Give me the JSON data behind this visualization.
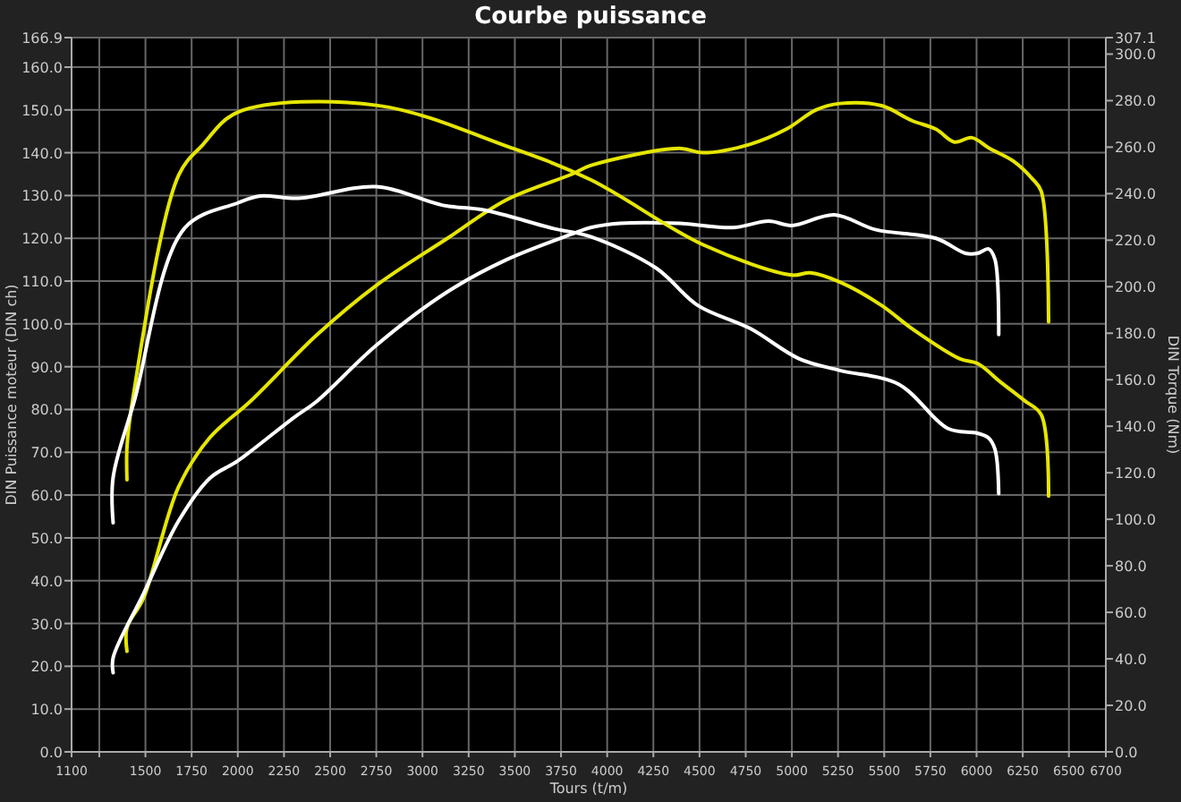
{
  "chart_data": {
    "type": "line",
    "title": "Courbe puissance",
    "xlabel": "Tours (t/m)",
    "ylabel": "DIN Puissance moteur (DIN ch)",
    "y2label": "DIN Torque (Nm)",
    "xlim": [
      1100,
      6700
    ],
    "xticks": [
      1100,
      {
        "value": 1250,
        "label": null
      },
      1500,
      1750,
      2000,
      2250,
      2500,
      2750,
      3000,
      3250,
      3500,
      3750,
      4000,
      4250,
      4500,
      4750,
      5000,
      5250,
      5500,
      5750,
      6000,
      6250,
      6500,
      6700
    ],
    "ylim": [
      0,
      166.9
    ],
    "yticks": [
      {
        "value": 0,
        "label": "0.0"
      },
      {
        "value": 10,
        "label": "10.0"
      },
      {
        "value": 20,
        "label": "20.0"
      },
      {
        "value": 30,
        "label": "30.0"
      },
      {
        "value": 40,
        "label": "40.0"
      },
      {
        "value": 50,
        "label": "50.0"
      },
      {
        "value": 60,
        "label": "60.0"
      },
      {
        "value": 70,
        "label": "70.0"
      },
      {
        "value": 80,
        "label": "80.0"
      },
      {
        "value": 90,
        "label": "90.0"
      },
      {
        "value": 100,
        "label": "100.0"
      },
      {
        "value": 110,
        "label": "110.0"
      },
      {
        "value": 120,
        "label": "120.0"
      },
      {
        "value": 130,
        "label": "130.0"
      },
      {
        "value": 140,
        "label": "140.0"
      },
      {
        "value": 150,
        "label": "150.0"
      },
      {
        "value": 160,
        "label": "160.0"
      },
      166.9
    ],
    "y2lim": [
      0,
      307.1
    ],
    "y2ticks": [
      {
        "value": 0,
        "label": "0.0"
      },
      {
        "value": 20,
        "label": "20.0"
      },
      {
        "value": 40,
        "label": "40.0"
      },
      {
        "value": 60,
        "label": "60.0"
      },
      {
        "value": 80,
        "label": "80.0"
      },
      {
        "value": 100,
        "label": "100.0"
      },
      {
        "value": 120,
        "label": "120.0"
      },
      {
        "value": 140,
        "label": "140.0"
      },
      {
        "value": 160,
        "label": "160.0"
      },
      {
        "value": 180,
        "label": "180.0"
      },
      {
        "value": 200,
        "label": "200.0"
      },
      {
        "value": 220,
        "label": "220.0"
      },
      {
        "value": 240,
        "label": "240.0"
      },
      {
        "value": 260,
        "label": "260.0"
      },
      {
        "value": 280,
        "label": "280.0"
      },
      {
        "value": 300,
        "label": "300.0"
      },
      307.1
    ],
    "grid": true,
    "line_style": "solid",
    "series": [
      {
        "color": "#e6e600",
        "x": [
          1400,
          1400,
          1490,
          1680,
          1850,
          2070,
          2430,
          2750,
          3135,
          3455,
          3810,
          3910,
          4390,
          4520,
          4775,
          4970,
          5130,
          5260,
          5485,
          5650,
          5780,
          5880,
          5975,
          6070,
          6200,
          6300,
          6350,
          6390
        ],
        "values": [
          23.5,
          29,
          36,
          62,
          73.5,
          82,
          97.5,
          109,
          120,
          129,
          135,
          137,
          141,
          140,
          142,
          145.5,
          150,
          151.5,
          151,
          147.5,
          145.5,
          142.5,
          143.5,
          141,
          138,
          134,
          131,
          100.5
        ]
      },
      {
        "color": "#ffffff",
        "x": [
          1325,
          1325,
          1490,
          1680,
          1850,
          2000,
          2300,
          2430,
          2750,
          3135,
          3455,
          3810,
          3910,
          4070,
          4390,
          4680,
          4875,
          5000,
          5230,
          5455,
          5780,
          5940,
          6005,
          6065,
          6100,
          6120
        ],
        "values": [
          18.5,
          22,
          37,
          54,
          64,
          68,
          78,
          82,
          95,
          107.5,
          115,
          121,
          122.5,
          123.5,
          123.5,
          122.5,
          124,
          123,
          125.5,
          122,
          120,
          116.5,
          116.5,
          117.5,
          115,
          97.5
        ]
      },
      {
        "color": "#e6e600",
        "axis": "y2",
        "x": [
          1400,
          1400,
          1430,
          1680,
          1810,
          2000,
          2750,
          3470,
          3910,
          4520,
          5000,
          5100,
          5260,
          5485,
          5650,
          5910,
          6005,
          6130,
          6260,
          6350,
          6390
        ],
        "values": [
          117,
          131,
          151,
          248,
          261,
          275,
          278,
          260,
          246,
          218,
          205,
          206,
          202,
          192,
          182,
          169,
          167,
          159,
          151,
          145,
          110
        ]
      },
      {
        "color": "#ffffff",
        "axis": "y2",
        "x": [
          1325,
          1325,
          1440,
          1710,
          2000,
          2120,
          2330,
          2750,
          3110,
          3330,
          3710,
          3910,
          4265,
          4490,
          4775,
          5040,
          5260,
          5580,
          5845,
          6005,
          6065,
          6100,
          6120
        ],
        "values": [
          98.5,
          118,
          151,
          225,
          236,
          239,
          238,
          243,
          235,
          233,
          225,
          221.5,
          208,
          192,
          182,
          169,
          164,
          158,
          139,
          137,
          135,
          130,
          111
        ]
      }
    ]
  }
}
